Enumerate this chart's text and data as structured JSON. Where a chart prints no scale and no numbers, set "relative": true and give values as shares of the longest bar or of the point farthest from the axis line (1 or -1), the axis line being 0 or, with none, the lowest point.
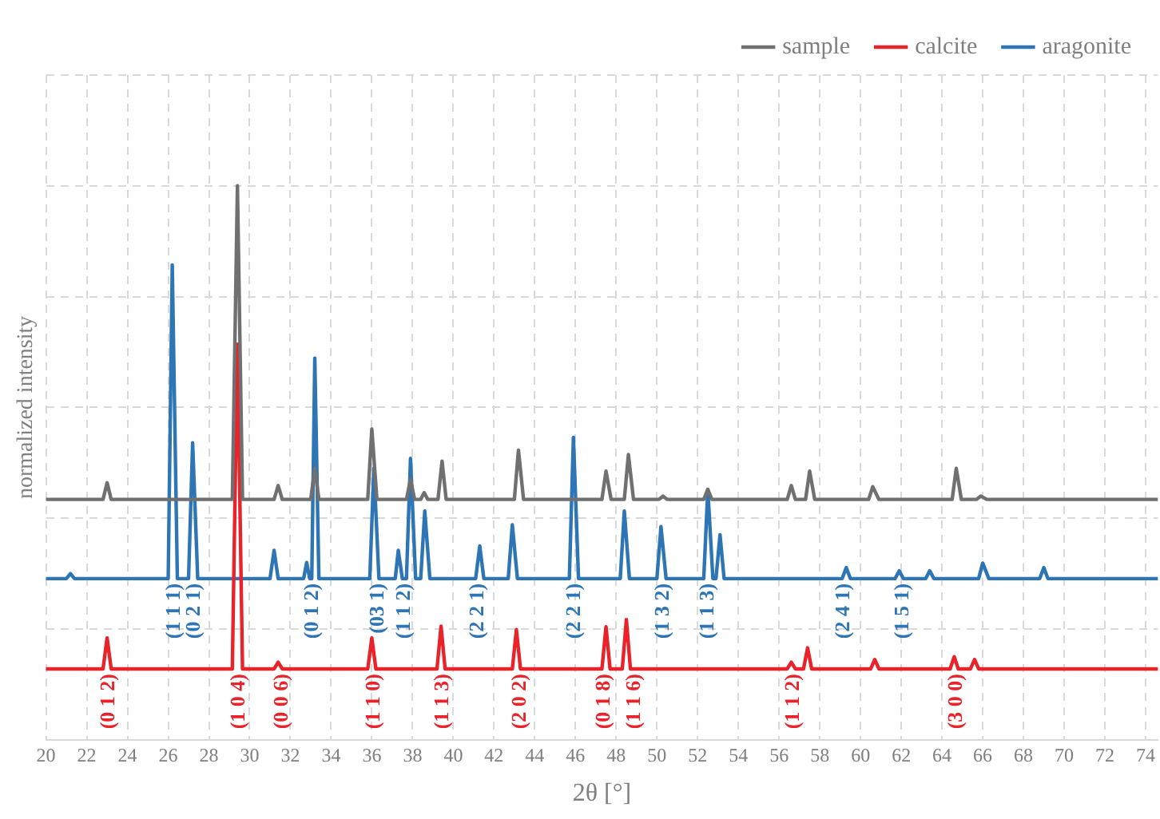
{
  "chart_data": {
    "type": "line",
    "xlabel": "2θ [°]",
    "ylabel": "normalized intensity",
    "relative": true,
    "xlim": [
      20,
      74.6
    ],
    "xticks": [
      20,
      22,
      24,
      26,
      28,
      30,
      32,
      34,
      36,
      38,
      40,
      42,
      44,
      46,
      48,
      50,
      52,
      54,
      56,
      58,
      60,
      62,
      64,
      66,
      68,
      70,
      72,
      74
    ],
    "tick_labels": "x",
    "grid": true,
    "legend": "top right",
    "marker": "none",
    "line_style": "solid",
    "series": [
      {
        "name": "sample",
        "color": "#707070",
        "x": [
          20,
          22.8,
          23.0,
          23.2,
          29.15,
          29.4,
          29.65,
          31.2,
          31.4,
          31.6,
          33.0,
          33.2,
          33.4,
          35.8,
          36.0,
          36.25,
          37.7,
          37.9,
          38.1,
          38.4,
          38.57,
          38.75,
          39.25,
          39.45,
          39.65,
          43.0,
          43.2,
          43.45,
          47.3,
          47.5,
          47.75,
          48.4,
          48.6,
          48.85,
          50.1,
          50.3,
          50.5,
          52.3,
          52.5,
          52.7,
          56.4,
          56.6,
          56.8,
          57.3,
          57.5,
          57.75,
          60.4,
          60.6,
          60.9,
          64.5,
          64.7,
          64.95,
          65.7,
          65.9,
          66.2,
          74.6
        ],
        "values": [
          0.434,
          0.434,
          0.464,
          0.434,
          0.434,
          1,
          0.434,
          0.434,
          0.459,
          0.434,
          0.434,
          0.49,
          0.434,
          0.434,
          0.561,
          0.434,
          0.434,
          0.47,
          0.434,
          0.434,
          0.446,
          0.434,
          0.434,
          0.503,
          0.434,
          0.434,
          0.523,
          0.434,
          0.434,
          0.485,
          0.434,
          0.434,
          0.515,
          0.434,
          0.434,
          0.44,
          0.434,
          0.434,
          0.452,
          0.434,
          0.434,
          0.459,
          0.434,
          0.434,
          0.485,
          0.434,
          0.434,
          0.457,
          0.434,
          0.434,
          0.49,
          0.434,
          0.434,
          0.44,
          0.434,
          0.434
        ]
      },
      {
        "name": "calcite",
        "color": "#e8232a",
        "x": [
          20,
          22.8,
          23.0,
          23.2,
          29.15,
          29.4,
          29.65,
          31.2,
          31.4,
          31.6,
          35.8,
          36.0,
          36.2,
          39.2,
          39.4,
          39.6,
          42.9,
          43.1,
          43.3,
          47.3,
          47.5,
          47.7,
          48.3,
          48.5,
          48.7,
          56.4,
          56.6,
          56.8,
          57.2,
          57.4,
          57.6,
          60.5,
          60.7,
          60.9,
          64.4,
          64.6,
          64.8,
          65.4,
          65.6,
          65.8,
          74.6
        ],
        "values": [
          0.128,
          0.128,
          0.184,
          0.128,
          0.128,
          0.714,
          0.128,
          0.128,
          0.14,
          0.128,
          0.128,
          0.184,
          0.128,
          0.128,
          0.205,
          0.128,
          0.128,
          0.199,
          0.128,
          0.128,
          0.204,
          0.128,
          0.128,
          0.217,
          0.128,
          0.128,
          0.14,
          0.128,
          0.128,
          0.166,
          0.128,
          0.128,
          0.145,
          0.128,
          0.128,
          0.15,
          0.128,
          0.128,
          0.145,
          0.128,
          0.128
        ]
      },
      {
        "name": "aragonite",
        "color": "#2e75b6",
        "x": [
          20,
          21.0,
          21.2,
          21.4,
          26.0,
          26.2,
          26.45,
          27.0,
          27.2,
          27.45,
          31.0,
          31.2,
          31.4,
          32.65,
          32.8,
          32.95,
          33.05,
          33.2,
          33.4,
          35.9,
          36.1,
          36.35,
          37.15,
          37.3,
          37.5,
          37.7,
          37.9,
          38.15,
          38.4,
          38.6,
          38.85,
          41.1,
          41.3,
          41.5,
          42.7,
          42.9,
          43.15,
          45.7,
          45.9,
          46.15,
          48.2,
          48.4,
          48.65,
          50.0,
          50.2,
          50.45,
          52.3,
          52.5,
          52.75,
          52.9,
          53.1,
          53.3,
          59.1,
          59.3,
          59.5,
          61.7,
          61.9,
          62.1,
          63.2,
          63.4,
          63.6,
          65.8,
          66.0,
          66.3,
          68.8,
          69.0,
          69.2,
          74.6
        ],
        "values": [
          0.291,
          0.291,
          0.3,
          0.291,
          0.291,
          0.857,
          0.291,
          0.291,
          0.536,
          0.291,
          0.291,
          0.342,
          0.291,
          0.291,
          0.32,
          0.291,
          0.291,
          0.689,
          0.291,
          0.291,
          0.49,
          0.291,
          0.291,
          0.342,
          0.291,
          0.291,
          0.508,
          0.291,
          0.291,
          0.413,
          0.291,
          0.291,
          0.35,
          0.291,
          0.291,
          0.388,
          0.291,
          0.291,
          0.546,
          0.291,
          0.291,
          0.413,
          0.291,
          0.291,
          0.385,
          0.291,
          0.291,
          0.452,
          0.291,
          0.291,
          0.37,
          0.291,
          0.291,
          0.311,
          0.291,
          0.291,
          0.305,
          0.291,
          0.291,
          0.305,
          0.291,
          0.291,
          0.319,
          0.291,
          0.291,
          0.311,
          0.291,
          0.291
        ]
      }
    ],
    "annotations": [
      {
        "text": "(1 1 1)",
        "x": 26.3,
        "y": 0.291
      },
      {
        "text": "(0 2 1)",
        "x": 27.3,
        "y": 0.291
      },
      {
        "text": "(0 1 2)",
        "x": 33.1,
        "y": 0.291
      },
      {
        "text": "(03 1)",
        "x": 36.3,
        "y": 0.291
      },
      {
        "text": "(1 1 2)",
        "x": 37.6,
        "y": 0.291
      },
      {
        "text": "(2 2 1)",
        "x": 41.2,
        "y": 0.291
      },
      {
        "text": "(2 2 1)",
        "x": 45.95,
        "y": 0.291
      },
      {
        "text": "(1 3 2)",
        "x": 50.3,
        "y": 0.291
      },
      {
        "text": "(1 1 3)",
        "x": 52.5,
        "y": 0.291
      },
      {
        "text": "(2 4 1)",
        "x": 59.2,
        "y": 0.291
      },
      {
        "text": "(1 5 1)",
        "x": 62.1,
        "y": 0.291
      },
      {
        "text": "(0 1 2)",
        "x": 23.1,
        "y": 0.128
      },
      {
        "text": "(1 0 4)",
        "x": 29.5,
        "y": 0.128
      },
      {
        "text": "(0 0 6)",
        "x": 31.6,
        "y": 0.128
      },
      {
        "text": "(1 1 0)",
        "x": 36.1,
        "y": 0.128
      },
      {
        "text": "(1 1 3)",
        "x": 39.5,
        "y": 0.128
      },
      {
        "text": "(2 0 2)",
        "x": 43.3,
        "y": 0.128
      },
      {
        "text": "(0 1 8)",
        "x": 47.4,
        "y": 0.128
      },
      {
        "text": "(1 1 6)",
        "x": 48.9,
        "y": 0.128
      },
      {
        "text": "(1 1 2)",
        "x": 56.7,
        "y": 0.128
      },
      {
        "text": "(3 0 0)",
        "x": 64.7,
        "y": 0.128
      }
    ]
  }
}
